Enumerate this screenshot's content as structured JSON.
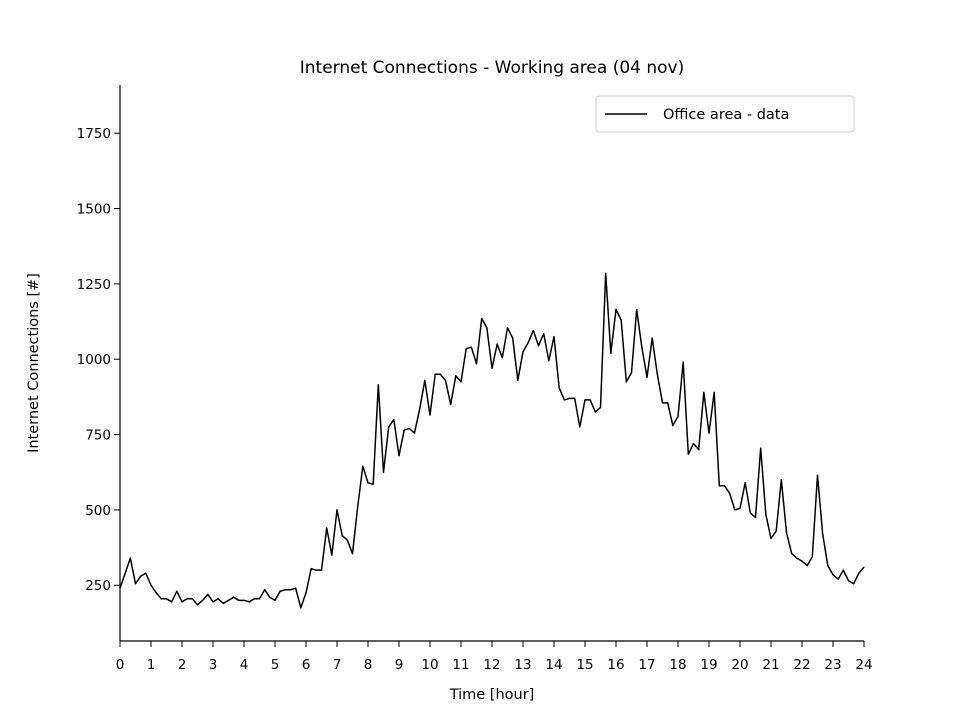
{
  "chart_data": {
    "type": "line",
    "title": "Internet Connections - Working area (04 nov)",
    "xlabel": "Time [hour]",
    "ylabel": "Internet Connections [#]",
    "xlim": [
      0,
      24
    ],
    "ylim": [
      65,
      1910
    ],
    "x_ticks": [
      0,
      1,
      2,
      3,
      4,
      5,
      6,
      7,
      8,
      9,
      10,
      11,
      12,
      13,
      14,
      15,
      16,
      17,
      18,
      19,
      20,
      21,
      22,
      23,
      24
    ],
    "y_ticks": [
      250,
      500,
      750,
      1000,
      1250,
      1500,
      1750
    ],
    "grid": false,
    "legend_position": "upper right",
    "series": [
      {
        "name": "Office area - data",
        "color": "#000000",
        "x": [
          0,
          0.167,
          0.333,
          0.5,
          0.667,
          0.833,
          1,
          1.167,
          1.333,
          1.5,
          1.667,
          1.833,
          2,
          2.167,
          2.333,
          2.5,
          2.667,
          2.833,
          3,
          3.167,
          3.333,
          3.5,
          3.667,
          3.833,
          4,
          4.167,
          4.333,
          4.5,
          4.667,
          4.833,
          5,
          5.167,
          5.333,
          5.5,
          5.667,
          5.833,
          6,
          6.167,
          6.333,
          6.5,
          6.667,
          6.833,
          7,
          7.167,
          7.333,
          7.5,
          7.667,
          7.833,
          8,
          8.167,
          8.333,
          8.5,
          8.667,
          8.833,
          9,
          9.167,
          9.333,
          9.5,
          9.667,
          9.833,
          10,
          10.167,
          10.333,
          10.5,
          10.667,
          10.833,
          11,
          11.167,
          11.333,
          11.5,
          11.667,
          11.833,
          12,
          12.167,
          12.333,
          12.5,
          12.667,
          12.833,
          13,
          13.167,
          13.333,
          13.5,
          13.667,
          13.833,
          14,
          14.167,
          14.333,
          14.5,
          14.667,
          14.833,
          15,
          15.167,
          15.333,
          15.5,
          15.667,
          15.833,
          16,
          16.167,
          16.333,
          16.5,
          16.667,
          16.833,
          17,
          17.167,
          17.333,
          17.5,
          17.667,
          17.833,
          18,
          18.167,
          18.333,
          18.5,
          18.667,
          18.833,
          19,
          19.167,
          19.333,
          19.5,
          19.667,
          19.833,
          20,
          20.167,
          20.333,
          20.5,
          20.667,
          20.833,
          21,
          21.167,
          21.333,
          21.5,
          21.667,
          21.833,
          22,
          22.167,
          22.333,
          22.5,
          22.667,
          22.833,
          23,
          23.167,
          23.333,
          23.5,
          23.667,
          23.833,
          24
        ],
        "y": [
          240,
          290,
          340,
          255,
          280,
          290,
          250,
          225,
          205,
          205,
          195,
          230,
          195,
          205,
          205,
          185,
          200,
          220,
          195,
          205,
          190,
          200,
          210,
          200,
          200,
          195,
          205,
          205,
          235,
          210,
          200,
          230,
          235,
          235,
          240,
          175,
          225,
          305,
          300,
          300,
          440,
          350,
          500,
          415,
          400,
          355,
          510,
          645,
          590,
          585,
          915,
          625,
          775,
          800,
          680,
          765,
          770,
          755,
          835,
          930,
          815,
          950,
          950,
          930,
          850,
          945,
          925,
          1035,
          1040,
          985,
          1135,
          1105,
          970,
          1050,
          1005,
          1105,
          1070,
          930,
          1025,
          1055,
          1095,
          1045,
          1085,
          995,
          1075,
          905,
          865,
          870,
          870,
          775,
          865,
          865,
          825,
          840,
          1285,
          1020,
          1165,
          1130,
          925,
          955,
          1165,
          1040,
          940,
          1070,
          950,
          855,
          855,
          780,
          810,
          990,
          685,
          720,
          700,
          890,
          755,
          890,
          580,
          580,
          555,
          500,
          505,
          590,
          490,
          475,
          705,
          485,
          405,
          430,
          600,
          425,
          355,
          340,
          330,
          315,
          345,
          615,
          420,
          315,
          285,
          270,
          300,
          265,
          255,
          290,
          310
        ]
      }
    ]
  }
}
